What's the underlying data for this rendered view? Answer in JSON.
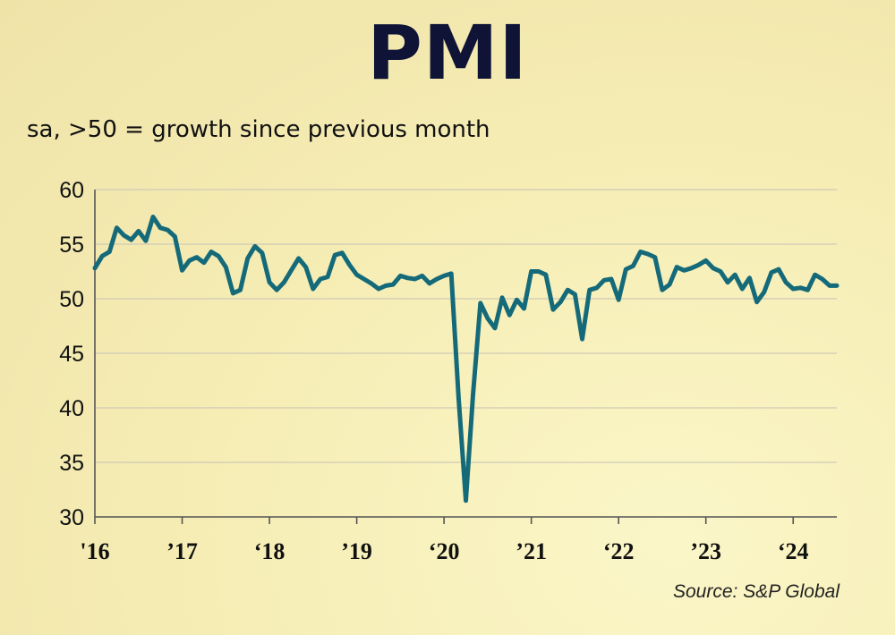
{
  "chart_data": {
    "type": "line",
    "title": "PMI",
    "subtitle": "sa, >50 = growth since previous month",
    "source": "Source: S&P Global",
    "ylim": [
      30,
      60
    ],
    "y_ticks": [
      60,
      55,
      50,
      45,
      40,
      35,
      30
    ],
    "x_range": [
      2016.0,
      2024.5
    ],
    "x_ticks": [
      {
        "label": "'16",
        "year": 2016
      },
      {
        "label": "’17",
        "year": 2017
      },
      {
        "label": "‘18",
        "year": 2018
      },
      {
        "label": "’19",
        "year": 2019
      },
      {
        "label": "‘20",
        "year": 2020
      },
      {
        "label": "’21",
        "year": 2021
      },
      {
        "label": "‘22",
        "year": 2022
      },
      {
        "label": "’23",
        "year": 2023
      },
      {
        "label": "‘24",
        "year": 2024
      }
    ],
    "grid": true,
    "line_color": "#156a7a",
    "series": [
      {
        "values": [
          52.8,
          53.9,
          54.3,
          56.5,
          55.8,
          55.4,
          56.2,
          55.3,
          57.5,
          56.5,
          56.3,
          55.7,
          52.6,
          53.5,
          53.8,
          53.3,
          54.3,
          53.9,
          52.9,
          50.5,
          50.8,
          53.7,
          54.8,
          54.2,
          51.5,
          50.8,
          51.5,
          52.6,
          53.7,
          52.9,
          50.9,
          51.8,
          52.0,
          54.0,
          54.2,
          53.1,
          52.2,
          51.8,
          51.4,
          50.9,
          51.2,
          51.3,
          52.1,
          51.9,
          51.8,
          52.1,
          51.4,
          51.8,
          52.1,
          52.3,
          40.9,
          31.5,
          41.3,
          49.6,
          48.2,
          47.3,
          50.1,
          48.5,
          49.9,
          49.1,
          52.5,
          52.5,
          52.2,
          49.0,
          49.7,
          50.8,
          50.4,
          46.3,
          50.8,
          51.0,
          51.7,
          51.8,
          49.9,
          52.7,
          53.0,
          54.3,
          54.1,
          53.8,
          50.8,
          51.3,
          52.9,
          52.6,
          52.8,
          53.1,
          53.5,
          52.8,
          52.5,
          51.5,
          52.2,
          50.9,
          51.9,
          49.7,
          50.6,
          52.4,
          52.7,
          51.5,
          50.9,
          51.0,
          50.8,
          52.2,
          51.8,
          51.2,
          51.2
        ]
      }
    ]
  }
}
